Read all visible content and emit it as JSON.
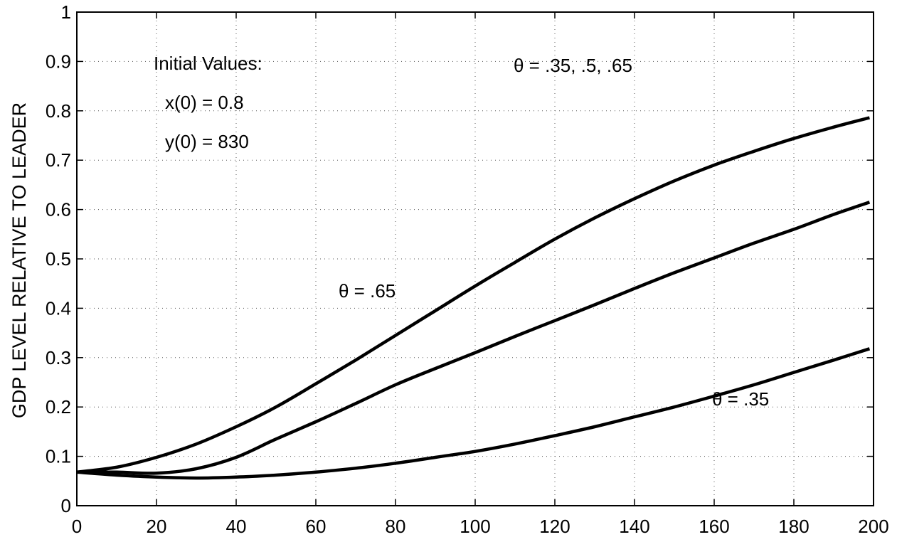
{
  "chart_data": {
    "type": "line",
    "title": "",
    "xlabel": "",
    "ylabel": "GDP LEVEL RELATIVE TO LEADER",
    "xlim": [
      0,
      200
    ],
    "ylim": [
      0,
      1
    ],
    "xticks": [
      0,
      20,
      40,
      60,
      80,
      100,
      120,
      140,
      160,
      180,
      200
    ],
    "yticks": [
      0,
      0.1,
      0.2,
      0.3,
      0.4,
      0.5,
      0.6,
      0.7,
      0.8,
      0.9,
      1
    ],
    "xtick_labels": [
      "0",
      "20",
      "40",
      "60",
      "80",
      "100",
      "120",
      "140",
      "160",
      "180",
      "200"
    ],
    "ytick_labels": [
      "0",
      "0.1",
      "0.2",
      "0.3",
      "0.4",
      "0.5",
      "0.6",
      "0.7",
      "0.8",
      "0.9",
      "1"
    ],
    "grid": true,
    "legend": "none",
    "series": [
      {
        "x": [
          0,
          10,
          20,
          30,
          40,
          50,
          60,
          70,
          80,
          90,
          100,
          110,
          120,
          130,
          140,
          150,
          160,
          170,
          180,
          190,
          199
        ],
        "y": [
          0.068,
          0.068,
          0.066,
          0.075,
          0.098,
          0.135,
          0.17,
          0.207,
          0.245,
          0.278,
          0.31,
          0.343,
          0.375,
          0.407,
          0.44,
          0.472,
          0.502,
          0.532,
          0.56,
          0.59,
          0.615
        ]
      },
      {
        "x": [
          0,
          10,
          20,
          30,
          40,
          50,
          60,
          70,
          80,
          90,
          100,
          110,
          120,
          130,
          140,
          150,
          160,
          170,
          180,
          190,
          199
        ],
        "y": [
          0.068,
          0.078,
          0.098,
          0.125,
          0.16,
          0.2,
          0.247,
          0.295,
          0.345,
          0.395,
          0.445,
          0.493,
          0.54,
          0.583,
          0.622,
          0.658,
          0.69,
          0.718,
          0.744,
          0.767,
          0.786
        ]
      },
      {
        "x": [
          0,
          10,
          20,
          30,
          40,
          50,
          60,
          70,
          80,
          90,
          100,
          110,
          120,
          130,
          140,
          150,
          160,
          170,
          180,
          190,
          199
        ],
        "y": [
          0.068,
          0.062,
          0.058,
          0.056,
          0.058,
          0.062,
          0.068,
          0.076,
          0.086,
          0.098,
          0.11,
          0.125,
          0.142,
          0.16,
          0.18,
          0.2,
          0.222,
          0.245,
          0.27,
          0.295,
          0.318
        ]
      }
    ],
    "annotations": {
      "initial_values": "Initial Values:",
      "x0": "x(0) = 0.8",
      "y0": "y(0) = 830",
      "theta_all": "θ = .35, .5, .65",
      "theta_high": "θ = .65",
      "theta_low": "θ = .35"
    }
  }
}
